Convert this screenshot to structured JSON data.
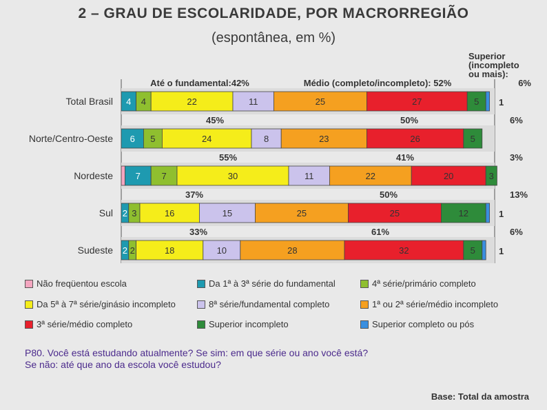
{
  "title": "2 – GRAU DE ESCOLARIDADE, POR MACRORREGIÃO",
  "subtitle": "(espontânea, em %)",
  "chart_data": {
    "type": "bar",
    "orientation": "horizontal",
    "stacked": true,
    "title": "2 – GRAU DE ESCOLARIDADE, POR MACRORREGIÃO",
    "subtitle": "(espontânea, em %)",
    "xlabel": "",
    "ylabel": "",
    "xlim": [
      0,
      100
    ],
    "categories": [
      "Total Brasil",
      "Norte/Centro-Oeste",
      "Nordeste",
      "Sul",
      "Sudeste"
    ],
    "series": [
      {
        "name": "Não freqüentou escola",
        "color": "#f4a6c0",
        "values": [
          0,
          0,
          1,
          0,
          0
        ],
        "labels": [
          "",
          "",
          "",
          "",
          ""
        ]
      },
      {
        "name": "Da 1ª à 3ª série do fundamental",
        "color": "#1e9ab0",
        "values": [
          4,
          6,
          7,
          2,
          2
        ],
        "labels": [
          "4",
          "6",
          "7",
          "2",
          "2"
        ]
      },
      {
        "name": "4ª série/primário completo",
        "color": "#8fbf2f",
        "values": [
          4,
          5,
          7,
          3,
          2
        ],
        "labels": [
          "4",
          "5",
          "7",
          "3",
          "2"
        ]
      },
      {
        "name": "Da 5ª à 7ª série/ginásio incompleto",
        "color": "#f5ed1a",
        "values": [
          22,
          24,
          30,
          16,
          18
        ],
        "labels": [
          "22",
          "24",
          "30",
          "16",
          "18"
        ]
      },
      {
        "name": "8ª série/fundamental completo",
        "color": "#cbc3ec",
        "values": [
          11,
          8,
          11,
          15,
          10
        ],
        "labels": [
          "11",
          "8",
          "11",
          "15",
          "10"
        ]
      },
      {
        "name": "1ª ou 2ª série/médio incompleto",
        "color": "#f5a020",
        "values": [
          25,
          23,
          22,
          25,
          28
        ],
        "labels": [
          "25",
          "23",
          "22",
          "25",
          "28"
        ]
      },
      {
        "name": "3ª série/médio completo",
        "color": "#e8202c",
        "values": [
          27,
          26,
          20,
          25,
          32
        ],
        "labels": [
          "27",
          "26",
          "20",
          "25",
          "32"
        ]
      },
      {
        "name": "Superior incompleto",
        "color": "#2e8b3a",
        "values": [
          5,
          5,
          3,
          12,
          5
        ],
        "labels": [
          "5",
          "5",
          "3",
          "12",
          "5"
        ]
      },
      {
        "name": "Superior completo ou pós",
        "color": "#3a8fe0",
        "values": [
          1,
          0,
          0,
          1,
          1
        ],
        "labels": [
          "1",
          "",
          "",
          "1",
          "1"
        ]
      }
    ],
    "group_totals": {
      "fundamental": [
        "Até o  fundamental:42%",
        "45%",
        "55%",
        "37%",
        "33%"
      ],
      "medio": [
        "Médio (completo/incompleto): 52%",
        "50%",
        "41%",
        "50%",
        "61%"
      ],
      "superior": [
        "6%",
        "6%",
        "3%",
        "13%",
        "6%"
      ]
    },
    "superior_header": [
      "Superior",
      "(incompleto",
      "ou mais):"
    ],
    "legend_position": "bottom"
  },
  "question": {
    "line1": "P80. Você está estudando atualmente? Se sim: em que série ou ano você está?",
    "line2": "Se não: até que ano da escola você estudou?"
  },
  "base": "Base: Total da amostra"
}
